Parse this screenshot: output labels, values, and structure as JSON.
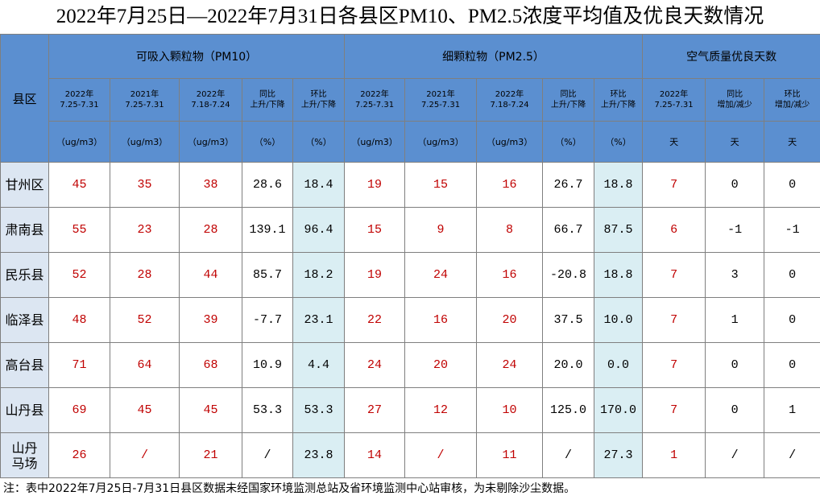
{
  "title": "2022年7月25日—2022年7月31日各县区PM10、PM2.5浓度平均值及优良天数情况",
  "table": {
    "corner": "县区",
    "groups": [
      "可吸入颗粒物（PM10）",
      "细颗粒物（PM2.5）",
      "空气质量优良天数"
    ],
    "subheaders": [
      "2022年\n7.25-7.31",
      "2021年\n7.25-7.31",
      "2022年\n7.18-7.24",
      "同比\n上升/下降",
      "环比\n上升/下降",
      "2022年\n7.25-7.31",
      "2021年\n7.25-7.31",
      "2022年\n7.18-7.24",
      "同比\n上升/下降",
      "环比\n上升/下降",
      "2022年\n7.25-7.31",
      "同比\n增加/减少",
      "环比\n增加/减少"
    ],
    "units": [
      "（ug/m3）",
      "（ug/m3）",
      "（ug/m3）",
      "（%）",
      "（%）",
      "（ug/m3）",
      "（ug/m3）",
      "（ug/m3）",
      "（%）",
      "（%）",
      "天",
      "天",
      "天"
    ],
    "rows": [
      [
        "甘州区",
        "45",
        "35",
        "38",
        "28.6",
        "18.4",
        "19",
        "15",
        "16",
        "26.7",
        "18.8",
        "7",
        "0",
        "0"
      ],
      [
        "肃南县",
        "55",
        "23",
        "28",
        "139.1",
        "96.4",
        "15",
        "9",
        "8",
        "66.7",
        "87.5",
        "6",
        "-1",
        "-1"
      ],
      [
        "民乐县",
        "52",
        "28",
        "44",
        "85.7",
        "18.2",
        "19",
        "24",
        "16",
        "-20.8",
        "18.8",
        "7",
        "3",
        "0"
      ],
      [
        "临泽县",
        "48",
        "52",
        "39",
        "-7.7",
        "23.1",
        "22",
        "16",
        "20",
        "37.5",
        "10.0",
        "7",
        "1",
        "0"
      ],
      [
        "高台县",
        "71",
        "64",
        "68",
        "10.9",
        "4.4",
        "24",
        "20",
        "24",
        "20.0",
        "0.0",
        "7",
        "0",
        "0"
      ],
      [
        "山丹县",
        "69",
        "45",
        "45",
        "53.3",
        "53.3",
        "27",
        "12",
        "10",
        "125.0",
        "170.0",
        "7",
        "0",
        "1"
      ],
      [
        "山丹\n马场",
        "26",
        "/",
        "21",
        "/",
        "23.8",
        "14",
        "/",
        "11",
        "/",
        "27.3",
        "1",
        "/",
        "/"
      ]
    ]
  },
  "note": "注：表中2022年7月25日-7月31日县区数据未经国家环境监测总站及省环境监测中心站审核，为未剔除沙尘数据。"
}
